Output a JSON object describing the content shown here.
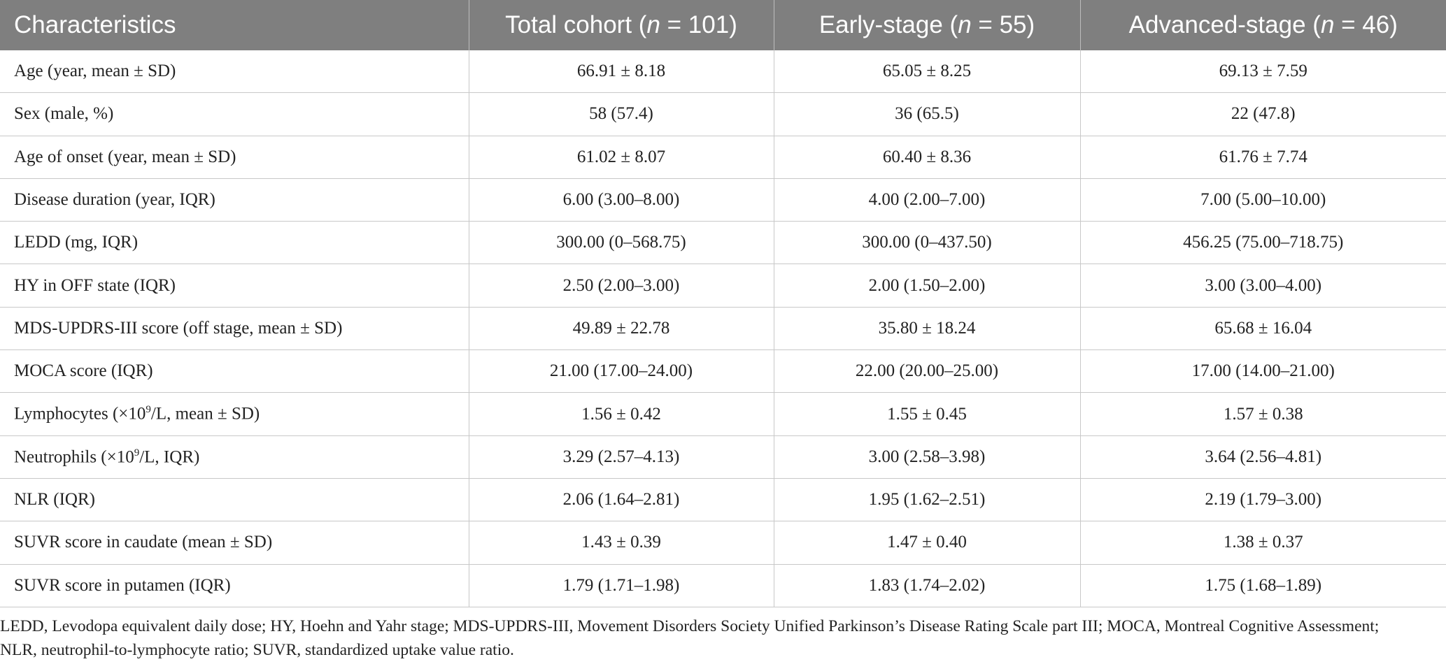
{
  "table": {
    "columns": [
      [
        "Characteristics"
      ],
      [
        "Total cohort (",
        "n",
        " = 101)"
      ],
      [
        "Early-stage (",
        "n",
        " = 55)"
      ],
      [
        "Advanced-stage (",
        "n",
        " = 46)"
      ]
    ],
    "rows": [
      [
        "Age (year, mean ± SD)",
        "66.91 ± 8.18",
        "65.05 ± 8.25",
        "69.13 ± 7.59"
      ],
      [
        "Sex (male, %)",
        "58 (57.4)",
        "36 (65.5)",
        "22 (47.8)"
      ],
      [
        "Age of onset (year, mean ± SD)",
        "61.02 ± 8.07",
        "60.40 ± 8.36",
        "61.76 ± 7.74"
      ],
      [
        "Disease duration (year, IQR)",
        "6.00 (3.00–8.00)",
        "4.00 (2.00–7.00)",
        "7.00 (5.00–10.00)"
      ],
      [
        "LEDD (mg, IQR)",
        "300.00 (0–568.75)",
        "300.00 (0–437.50)",
        "456.25 (75.00–718.75)"
      ],
      [
        "HY in OFF state (IQR)",
        "2.50 (2.00–3.00)",
        "2.00 (1.50–2.00)",
        "3.00 (3.00–4.00)"
      ],
      [
        "MDS-UPDRS-III score (off stage, mean ± SD)",
        "49.89 ± 22.78",
        "35.80 ± 18.24",
        "65.68 ± 16.04"
      ],
      [
        "MOCA score (IQR)",
        "21.00 (17.00–24.00)",
        "22.00 (20.00–25.00)",
        "17.00 (14.00–21.00)"
      ],
      [
        [
          "Lymphocytes (×10",
          "9",
          "/L, mean ± SD)"
        ],
        "1.56 ± 0.42",
        "1.55 ± 0.45",
        "1.57 ± 0.38"
      ],
      [
        [
          "Neutrophils (×10",
          "9",
          "/L, IQR)"
        ],
        "3.29 (2.57–4.13)",
        "3.00 (2.58–3.98)",
        "3.64 (2.56–4.81)"
      ],
      [
        "NLR (IQR)",
        "2.06 (1.64–2.81)",
        "1.95 (1.62–2.51)",
        "2.19 (1.79–3.00)"
      ],
      [
        "SUVR score in caudate (mean ± SD)",
        "1.43 ± 0.39",
        "1.47 ± 0.40",
        "1.38 ± 0.37"
      ],
      [
        "SUVR score in putamen (IQR)",
        "1.79 (1.71–1.98)",
        "1.83 (1.74–2.02)",
        "1.75 (1.68–1.89)"
      ]
    ]
  },
  "footnote": "LEDD, Levodopa equivalent daily dose; HY, Hoehn and Yahr stage; MDS-UPDRS-III, Movement Disorders Society Unified Parkinson’s Disease Rating Scale part III; MOCA, Montreal Cognitive Assessment; NLR, neutrophil-to-lymphocyte ratio; SUVR, standardized uptake value ratio."
}
